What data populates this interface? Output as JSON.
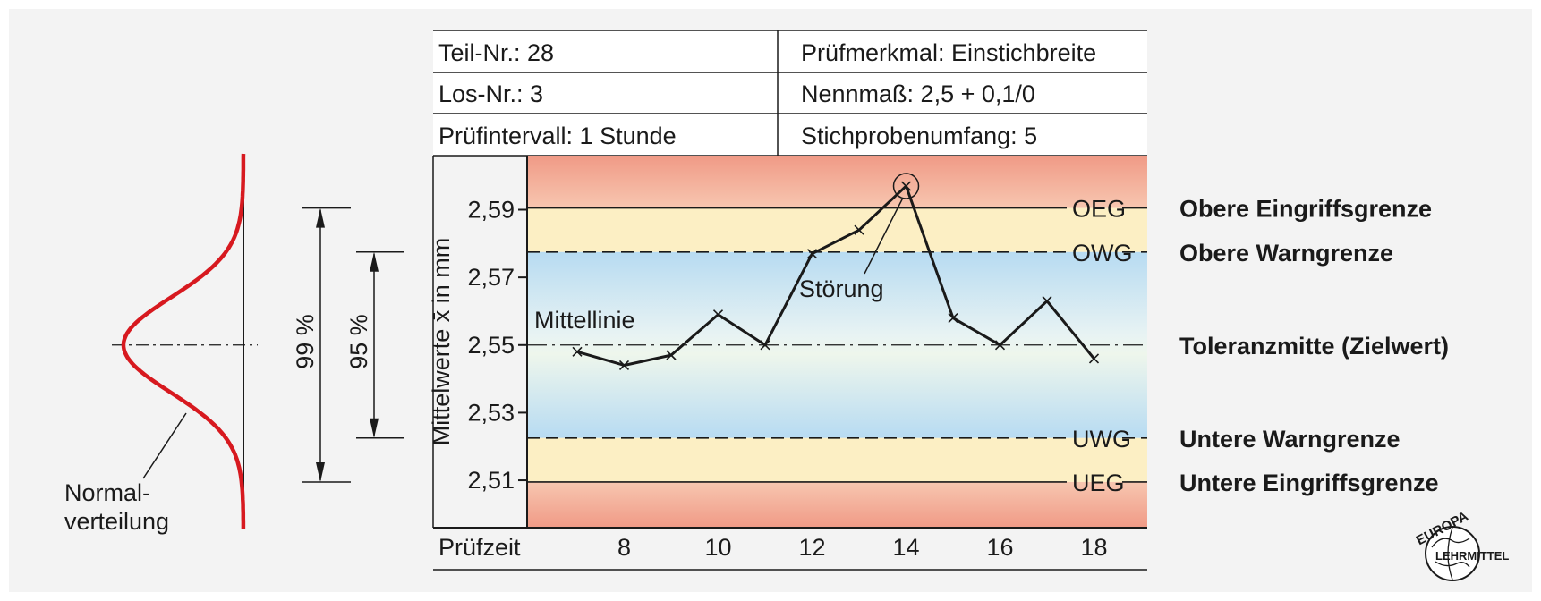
{
  "header": {
    "teil_nr": "Teil-Nr.: 28",
    "pruefmerkmal": "Prüfmerkmal: Einstichbreite",
    "los_nr": "Los-Nr.: 3",
    "nennmass": "Nennmaß: 2,5 + 0,1/0",
    "pruefintervall": "Prüfintervall: 1 Stunde",
    "stichprobe": "Stichprobenumfang: 5"
  },
  "chart_data": {
    "type": "line",
    "title": "",
    "ylabel": "Mittelwerte x̄ in mm",
    "xlabel": "Prüfzeit",
    "ylim": [
      2.496,
      2.606
    ],
    "xlim": [
      6,
      19.5
    ],
    "yticks": [
      2.51,
      2.53,
      2.55,
      2.57,
      2.59
    ],
    "ytick_labels": [
      "2,51",
      "2,53",
      "2,55",
      "2,57",
      "2,59"
    ],
    "xticks": [
      8,
      10,
      12,
      14,
      16,
      18
    ],
    "xtick_labels": [
      "8",
      "10",
      "12",
      "14",
      "16",
      "18"
    ],
    "x": [
      7,
      8,
      9,
      10,
      11,
      12,
      13,
      14,
      15,
      16,
      17,
      18
    ],
    "values": [
      2.548,
      2.544,
      2.547,
      2.559,
      2.55,
      2.577,
      2.584,
      2.597,
      2.558,
      2.55,
      2.563,
      2.546
    ],
    "limits": [
      {
        "abbr": "OEG",
        "value": 2.5905,
        "label": "Obere Eingriffsgrenze",
        "style": "solid"
      },
      {
        "abbr": "OWG",
        "value": 2.5775,
        "label": "Obere Warngrenze",
        "style": "dashed"
      },
      {
        "abbr": "",
        "value": 2.55,
        "label": "Toleranzmitte (Zielwert)",
        "style": "dashdot"
      },
      {
        "abbr": "UWG",
        "value": 2.5225,
        "label": "Untere Warngrenze",
        "style": "dashed"
      },
      {
        "abbr": "UEG",
        "value": 2.5095,
        "label": "Untere Eingriffsgrenze",
        "style": "solid"
      }
    ],
    "annotations": {
      "mittellinie": "Mittellinie",
      "stoerung": "Störung",
      "stoerung_x": 14
    },
    "colors": {
      "eingriff_zone": "#f2a38e",
      "warn_zone": "#fcefc4",
      "center_zone": "#b9ddf3",
      "series": "#1a1a1a",
      "normal_curve": "#d7191f"
    }
  },
  "distribution": {
    "label_99": "99 %",
    "label_95": "95 %",
    "normal_label_1": "Normal-",
    "normal_label_2": "verteilung"
  },
  "logo": {
    "top": "EUROPA",
    "bottom": "LEHRMITTEL"
  }
}
